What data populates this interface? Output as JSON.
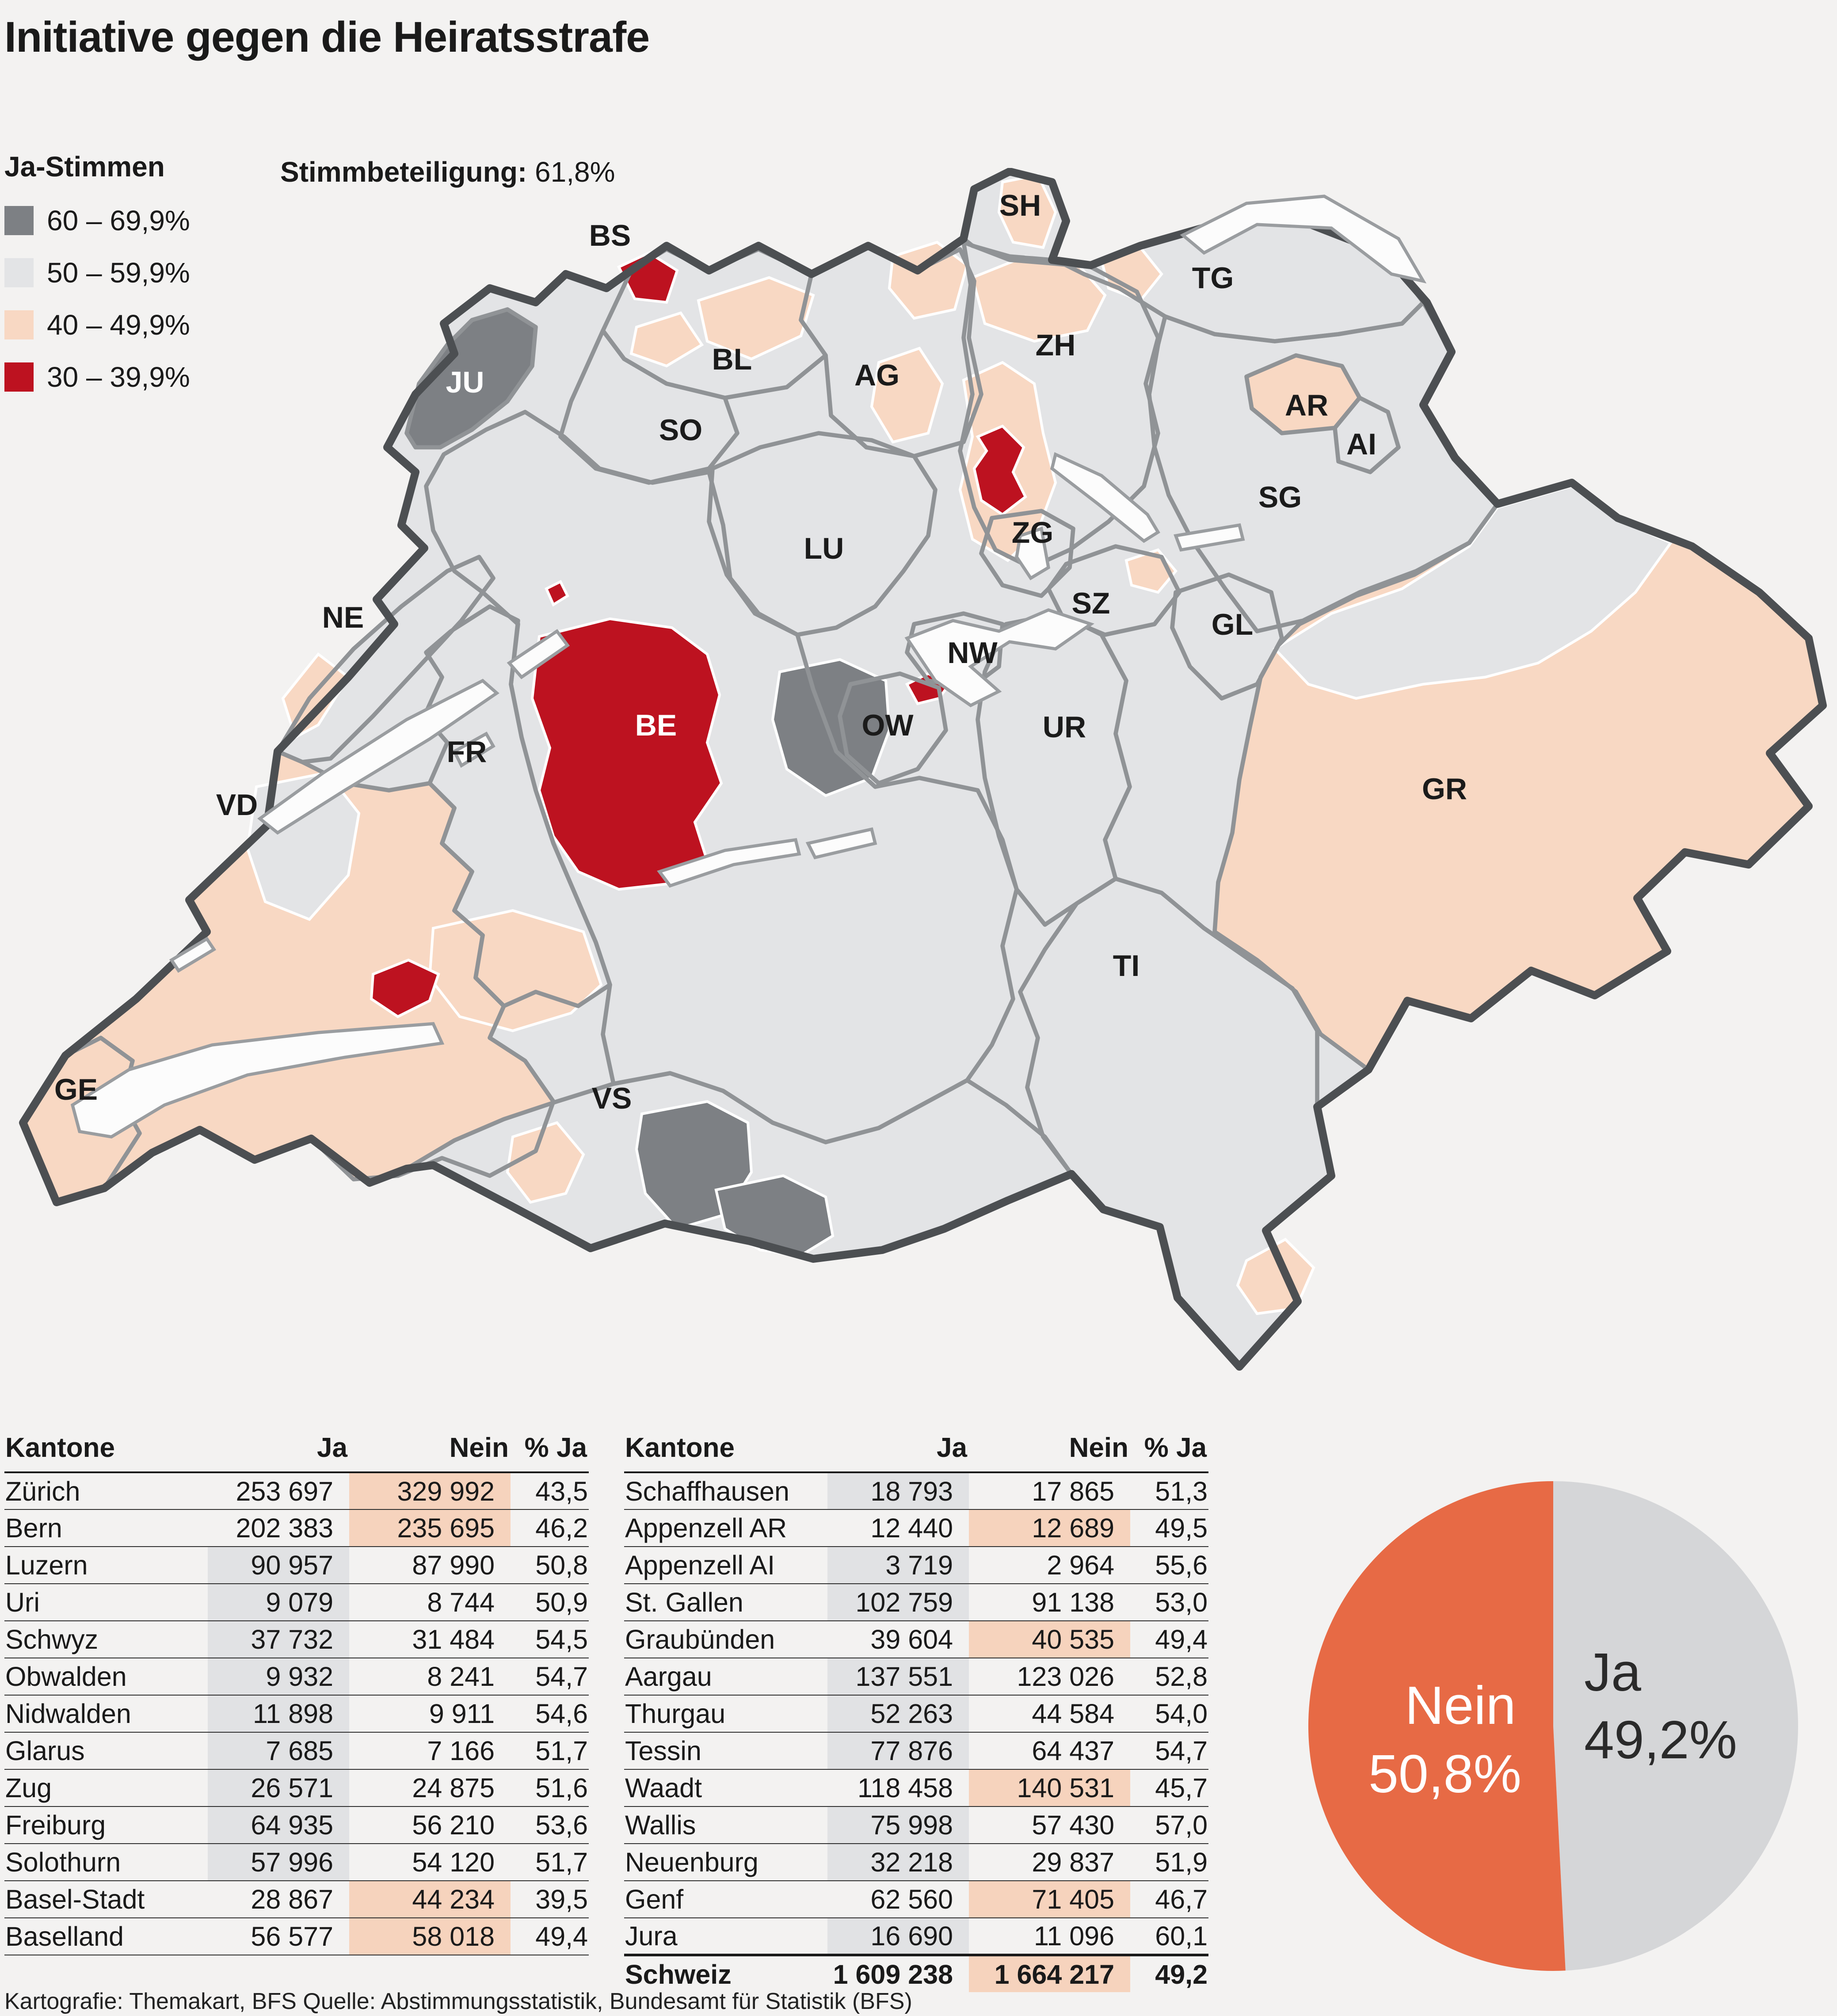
{
  "title": "Initiative gegen die Heiratsstrafe",
  "legend": {
    "title": "Ja-Stimmen",
    "items": [
      {
        "label": "60 – 69,9%",
        "color_key": "dark"
      },
      {
        "label": "50 – 59,9%",
        "color_key": "light"
      },
      {
        "label": "40 – 49,9%",
        "color_key": "peach"
      },
      {
        "label": "30 – 39,9%",
        "color_key": "red"
      }
    ]
  },
  "turnout": {
    "label": "Stimmbeteiligung:",
    "value": "61,8%"
  },
  "map": {
    "labels": [
      {
        "id": "SH",
        "text": "SH"
      },
      {
        "id": "BS",
        "text": "BS"
      },
      {
        "id": "TG",
        "text": "TG"
      },
      {
        "id": "ZH",
        "text": "ZH"
      },
      {
        "id": "BL",
        "text": "BL"
      },
      {
        "id": "AG",
        "text": "AG"
      },
      {
        "id": "AR",
        "text": "AR"
      },
      {
        "id": "AI",
        "text": "AI"
      },
      {
        "id": "JU",
        "text": "JU"
      },
      {
        "id": "SO",
        "text": "SO"
      },
      {
        "id": "SG",
        "text": "SG"
      },
      {
        "id": "ZG",
        "text": "ZG"
      },
      {
        "id": "LU",
        "text": "LU"
      },
      {
        "id": "SZ",
        "text": "SZ"
      },
      {
        "id": "GL",
        "text": "GL"
      },
      {
        "id": "NE",
        "text": "NE"
      },
      {
        "id": "NW",
        "text": "NW"
      },
      {
        "id": "OW",
        "text": "OW"
      },
      {
        "id": "UR",
        "text": "UR"
      },
      {
        "id": "BE",
        "text": "BE"
      },
      {
        "id": "FR",
        "text": "FR"
      },
      {
        "id": "GR",
        "text": "GR"
      },
      {
        "id": "VD",
        "text": "VD"
      },
      {
        "id": "TI",
        "text": "TI"
      },
      {
        "id": "VS",
        "text": "VS"
      },
      {
        "id": "GE",
        "text": "GE"
      }
    ]
  },
  "tables": {
    "headers": {
      "canton": "Kantone",
      "ja": "Ja",
      "nein": "Nein",
      "pja": "% Ja"
    },
    "left": {
      "rows": [
        {
          "canton": "Zürich",
          "ja": "253 697",
          "nein": "329 992",
          "pja": "43,5",
          "win": "nein"
        },
        {
          "canton": "Bern",
          "ja": "202 383",
          "nein": "235 695",
          "pja": "46,2",
          "win": "nein"
        },
        {
          "canton": "Luzern",
          "ja": "90 957",
          "nein": "87 990",
          "pja": "50,8",
          "win": "ja"
        },
        {
          "canton": "Uri",
          "ja": "9 079",
          "nein": "8 744",
          "pja": "50,9",
          "win": "ja"
        },
        {
          "canton": "Schwyz",
          "ja": "37 732",
          "nein": "31 484",
          "pja": "54,5",
          "win": "ja"
        },
        {
          "canton": "Obwalden",
          "ja": "9 932",
          "nein": "8 241",
          "pja": "54,7",
          "win": "ja"
        },
        {
          "canton": "Nidwalden",
          "ja": "11 898",
          "nein": "9 911",
          "pja": "54,6",
          "win": "ja"
        },
        {
          "canton": "Glarus",
          "ja": "7 685",
          "nein": "7 166",
          "pja": "51,7",
          "win": "ja"
        },
        {
          "canton": "Zug",
          "ja": "26 571",
          "nein": "24 875",
          "pja": "51,6",
          "win": "ja"
        },
        {
          "canton": "Freiburg",
          "ja": "64 935",
          "nein": "56 210",
          "pja": "53,6",
          "win": "ja"
        },
        {
          "canton": "Solothurn",
          "ja": "57 996",
          "nein": "54 120",
          "pja": "51,7",
          "win": "ja"
        },
        {
          "canton": "Basel-Stadt",
          "ja": "28 867",
          "nein": "44 234",
          "pja": "39,5",
          "win": "nein"
        },
        {
          "canton": "Baselland",
          "ja": "56 577",
          "nein": "58 018",
          "pja": "49,4",
          "win": "nein"
        }
      ]
    },
    "right": {
      "rows": [
        {
          "canton": "Schaffhausen",
          "ja": "18 793",
          "nein": "17 865",
          "pja": "51,3",
          "win": "ja"
        },
        {
          "canton": "Appenzell AR",
          "ja": "12 440",
          "nein": "12 689",
          "pja": "49,5",
          "win": "nein"
        },
        {
          "canton": "Appenzell AI",
          "ja": "3 719",
          "nein": "2 964",
          "pja": "55,6",
          "win": "ja"
        },
        {
          "canton": "St. Gallen",
          "ja": "102 759",
          "nein": "91 138",
          "pja": "53,0",
          "win": "ja"
        },
        {
          "canton": "Graubünden",
          "ja": "39 604",
          "nein": "40 535",
          "pja": "49,4",
          "win": "nein"
        },
        {
          "canton": "Aargau",
          "ja": "137 551",
          "nein": "123 026",
          "pja": "52,8",
          "win": "ja"
        },
        {
          "canton": "Thurgau",
          "ja": "52 263",
          "nein": "44 584",
          "pja": "54,0",
          "win": "ja"
        },
        {
          "canton": "Tessin",
          "ja": "77 876",
          "nein": "64 437",
          "pja": "54,7",
          "win": "ja"
        },
        {
          "canton": "Waadt",
          "ja": "118 458",
          "nein": "140 531",
          "pja": "45,7",
          "win": "nein"
        },
        {
          "canton": "Wallis",
          "ja": "75 998",
          "nein": "57 430",
          "pja": "57,0",
          "win": "ja"
        },
        {
          "canton": "Neuenburg",
          "ja": "32 218",
          "nein": "29 837",
          "pja": "51,9",
          "win": "ja"
        },
        {
          "canton": "Genf",
          "ja": "62 560",
          "nein": "71 405",
          "pja": "46,7",
          "win": "nein"
        },
        {
          "canton": "Jura",
          "ja": "16 690",
          "nein": "11 096",
          "pja": "60,1",
          "win": "ja"
        },
        {
          "canton": "Schweiz",
          "ja": "1 609 238",
          "nein": "1 664 217",
          "pja": "49,2",
          "win": "nein",
          "total": true
        }
      ]
    }
  },
  "pie": {
    "nein_label": "Nein",
    "nein_value": "50,8%",
    "ja_label": "Ja",
    "ja_value": "49,2%"
  },
  "footer": "Kartografie: Themakart, BFS Quelle: Abstimmungsstatistik, Bundesamt für Statistik (BFS)",
  "colors": {
    "dark": "#7d8084",
    "light": "#e3e4e6",
    "peach": "#f8d8c3",
    "red": "#bd1220",
    "pie-orange": "#e76a45",
    "pie-gray": "#d5d6d8",
    "hl-gray": "#e1e2e4",
    "hl-peach": "#f6d3bd"
  },
  "chart_data": [
    {
      "type": "pie",
      "title": "Gesamtergebnis Schweiz",
      "labels": [
        "Ja",
        "Nein"
      ],
      "values": [
        49.2,
        50.8
      ],
      "colors": [
        "#d5d6d8",
        "#e76a45"
      ],
      "annotations": [
        "Ja 49,2%",
        "Nein 50,8%"
      ]
    },
    {
      "type": "table",
      "title": "Initiative gegen die Heiratsstrafe — Resultate nach Kantonen",
      "columns": [
        "Kantone",
        "Ja",
        "Nein",
        "% Ja"
      ],
      "rows": [
        [
          "Zürich",
          253697,
          329992,
          43.5
        ],
        [
          "Bern",
          202383,
          235695,
          46.2
        ],
        [
          "Luzern",
          90957,
          87990,
          50.8
        ],
        [
          "Uri",
          9079,
          8744,
          50.9
        ],
        [
          "Schwyz",
          37732,
          31484,
          54.5
        ],
        [
          "Obwalden",
          9932,
          8241,
          54.7
        ],
        [
          "Nidwalden",
          11898,
          9911,
          54.6
        ],
        [
          "Glarus",
          7685,
          7166,
          51.7
        ],
        [
          "Zug",
          26571,
          24875,
          51.6
        ],
        [
          "Freiburg",
          64935,
          56210,
          53.6
        ],
        [
          "Solothurn",
          57996,
          54120,
          51.7
        ],
        [
          "Basel-Stadt",
          28867,
          44234,
          39.5
        ],
        [
          "Baselland",
          56577,
          58018,
          49.4
        ],
        [
          "Schaffhausen",
          18793,
          17865,
          51.3
        ],
        [
          "Appenzell AR",
          12440,
          12689,
          49.5
        ],
        [
          "Appenzell AI",
          3719,
          2964,
          55.6
        ],
        [
          "St. Gallen",
          102759,
          91138,
          53.0
        ],
        [
          "Graubünden",
          39604,
          40535,
          49.4
        ],
        [
          "Aargau",
          137551,
          123026,
          52.8
        ],
        [
          "Thurgau",
          52263,
          44584,
          54.0
        ],
        [
          "Tessin",
          77876,
          64437,
          54.7
        ],
        [
          "Waadt",
          118458,
          140531,
          45.7
        ],
        [
          "Wallis",
          75998,
          57430,
          57.0
        ],
        [
          "Neuenburg",
          32218,
          29837,
          51.9
        ],
        [
          "Genf",
          62560,
          71405,
          46.7
        ],
        [
          "Jura",
          16690,
          11096,
          60.1
        ],
        [
          "Schweiz",
          1609238,
          1664217,
          49.2
        ]
      ]
    },
    {
      "type": "heatmap",
      "title": "Ja-Stimmen Karte (Choroplethe nach Bezirken)",
      "legend_classes": [
        {
          "range": "60–69,9%",
          "color": "#7d8084"
        },
        {
          "range": "50–59,9%",
          "color": "#e3e4e6"
        },
        {
          "range": "40–49,9%",
          "color": "#f8d8c3"
        },
        {
          "range": "30–39,9%",
          "color": "#bd1220"
        }
      ],
      "turnout_percent": 61.8
    }
  ]
}
